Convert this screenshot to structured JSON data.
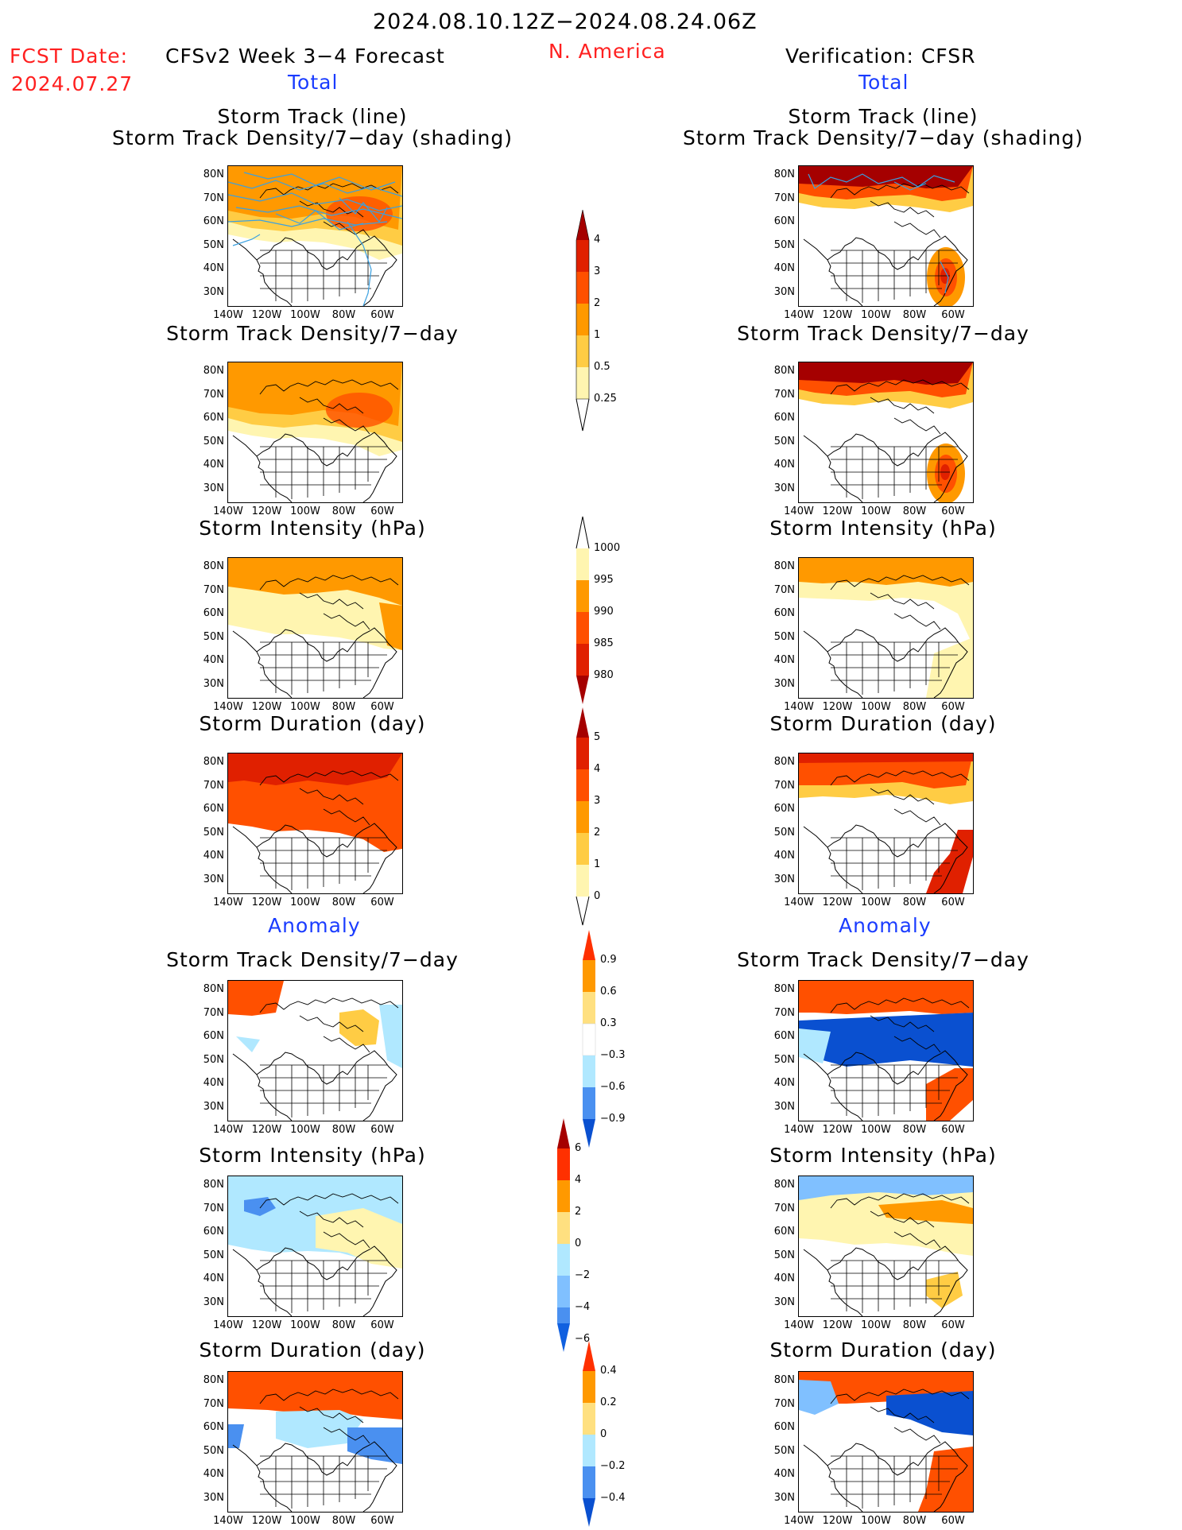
{
  "header": {
    "date_range": "2024.08.10.12Z−2024.08.24.06Z",
    "fcst_label": "FCST Date:",
    "fcst_date": "2024.07.27",
    "model_title": "CFSv2 Week 3−4 Forecast",
    "region": "N. America",
    "verification_title": "Verification: CFSR"
  },
  "sections": {
    "total": "Total",
    "anomaly": "Anomaly"
  },
  "panel_titles": {
    "track_line": "Storm Track (line)",
    "track_shading": "Storm Track Density/7−day (shading)",
    "density": "Storm Track Density/7−day",
    "intensity": "Storm Intensity (hPa)",
    "duration": "Storm Duration (day)"
  },
  "axes": {
    "lat_ticks": [
      "80N",
      "70N",
      "60N",
      "50N",
      "40N",
      "30N"
    ],
    "lon_ticks": [
      "140W",
      "120W",
      "100W",
      "80W",
      "60W"
    ]
  },
  "colorbars": {
    "density_total": [
      "4",
      "3",
      "2",
      "1",
      "0.5",
      "0.25"
    ],
    "intensity_total": [
      "1000",
      "995",
      "990",
      "985",
      "980"
    ],
    "duration_total": [
      "5",
      "4",
      "3",
      "2",
      "1",
      "0"
    ],
    "density_anom": [
      "0.9",
      "0.6",
      "0.3",
      "−0.3",
      "−0.6",
      "−0.9"
    ],
    "intensity_anom": [
      "6",
      "4",
      "2",
      "0",
      "−2",
      "−4",
      "−6"
    ],
    "duration_anom": [
      "0.4",
      "0.2",
      "0",
      "−0.2",
      "−0.4"
    ]
  },
  "colors": {
    "dark_red": "#a50000",
    "red": "#e02000",
    "orange_red": "#ff5000",
    "orange": "#ff9900",
    "light_orange": "#ffcc44",
    "pale_yellow": "#fff5b0",
    "light_blue": "#b0e8ff",
    "mid_blue": "#4a90f0",
    "dark_blue": "#0a50d0",
    "track_line": "#3aa0e0"
  }
}
